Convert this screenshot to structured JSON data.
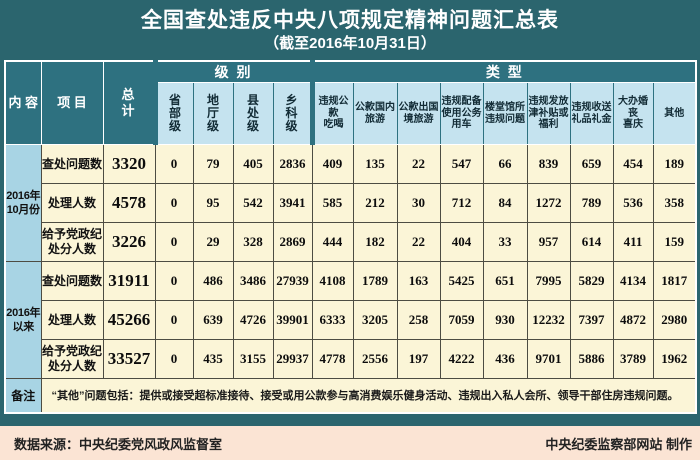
{
  "title": "全国查处违反中央八项规定精神问题汇总表",
  "subtitle": "（截至2016年10月31日）",
  "table": {
    "header_content": "内 容",
    "header_project": "项 目",
    "header_total": "总\n计",
    "group_level": "级 别",
    "group_type": "类 型",
    "level_columns": [
      "省\n部\n级",
      "地\n厅\n级",
      "县\n处\n级",
      "乡\n科\n级"
    ],
    "type_columns": [
      "违规公款\n吃喝",
      "公款国内\n旅游",
      "公款出国\n境旅游",
      "违规配备\n使用公务\n用车",
      "楼堂馆所\n违规问题",
      "违规发放\n津补贴或\n福利",
      "违规收送\n礼品礼金",
      "大办婚丧\n喜庆",
      "其他"
    ],
    "row_groups": [
      {
        "label": "2016年\n10月份",
        "row_labels": [
          "查处问题数",
          "处理人数",
          "给予党政纪\n处分人数"
        ]
      },
      {
        "label": "2016年\n以来",
        "row_labels": [
          "查处问题数",
          "处理人数",
          "给予党政纪\n处分人数"
        ]
      }
    ],
    "note_label": "备注",
    "note_text": "“其他”问题包括：提供或接受超标准接待、接受或用公款参与高消费娱乐健身活动、违规出入私人会所、领导干部住房违规问题。"
  },
  "chart_data": {
    "type": "table",
    "title": "全国查处违反中央八项规定精神问题汇总表",
    "subtitle": "（截至2016年10月31日）",
    "column_groups": [
      "级别",
      "类型"
    ],
    "columns": [
      "总计",
      "省部级",
      "地厅级",
      "县处级",
      "乡科级",
      "违规公款吃喝",
      "公款国内旅游",
      "公款出国境旅游",
      "违规配备使用公务用车",
      "楼堂馆所违规问题",
      "违规发放津补贴或福利",
      "违规收送礼品礼金",
      "大办婚丧喜庆",
      "其他"
    ],
    "row_periods": [
      "2016年10月份",
      "2016年10月份",
      "2016年10月份",
      "2016年以来",
      "2016年以来",
      "2016年以来"
    ],
    "row_items": [
      "查处问题数",
      "处理人数",
      "给予党政纪处分人数",
      "查处问题数",
      "处理人数",
      "给予党政纪处分人数"
    ],
    "rows": [
      [
        3320,
        0,
        79,
        405,
        2836,
        409,
        135,
        22,
        547,
        66,
        839,
        659,
        454,
        189
      ],
      [
        4578,
        0,
        95,
        542,
        3941,
        585,
        212,
        30,
        712,
        84,
        1272,
        789,
        536,
        358
      ],
      [
        3226,
        0,
        29,
        328,
        2869,
        444,
        182,
        22,
        404,
        33,
        957,
        614,
        411,
        159
      ],
      [
        31911,
        0,
        486,
        3486,
        27939,
        4108,
        1789,
        163,
        5425,
        651,
        7995,
        5829,
        4134,
        1817
      ],
      [
        45266,
        0,
        639,
        4726,
        39901,
        6333,
        3205,
        258,
        7059,
        930,
        12232,
        7397,
        4872,
        2980
      ],
      [
        33527,
        0,
        435,
        3155,
        29937,
        4778,
        2556,
        197,
        4222,
        436,
        9701,
        5886,
        3789,
        1962
      ]
    ]
  },
  "footer": {
    "source": "数据来源：中央纪委党风政风监督室",
    "credit": "中央纪委监察部网站 制作"
  },
  "colors": {
    "background": "#2b656e",
    "header_teal": "#2e7180",
    "header_light_blue": "#c5e3ef",
    "row_group_blue": "#a8d4e4",
    "cell_cream": "#fbf5d7",
    "footer_pink": "#fbe4d4"
  }
}
